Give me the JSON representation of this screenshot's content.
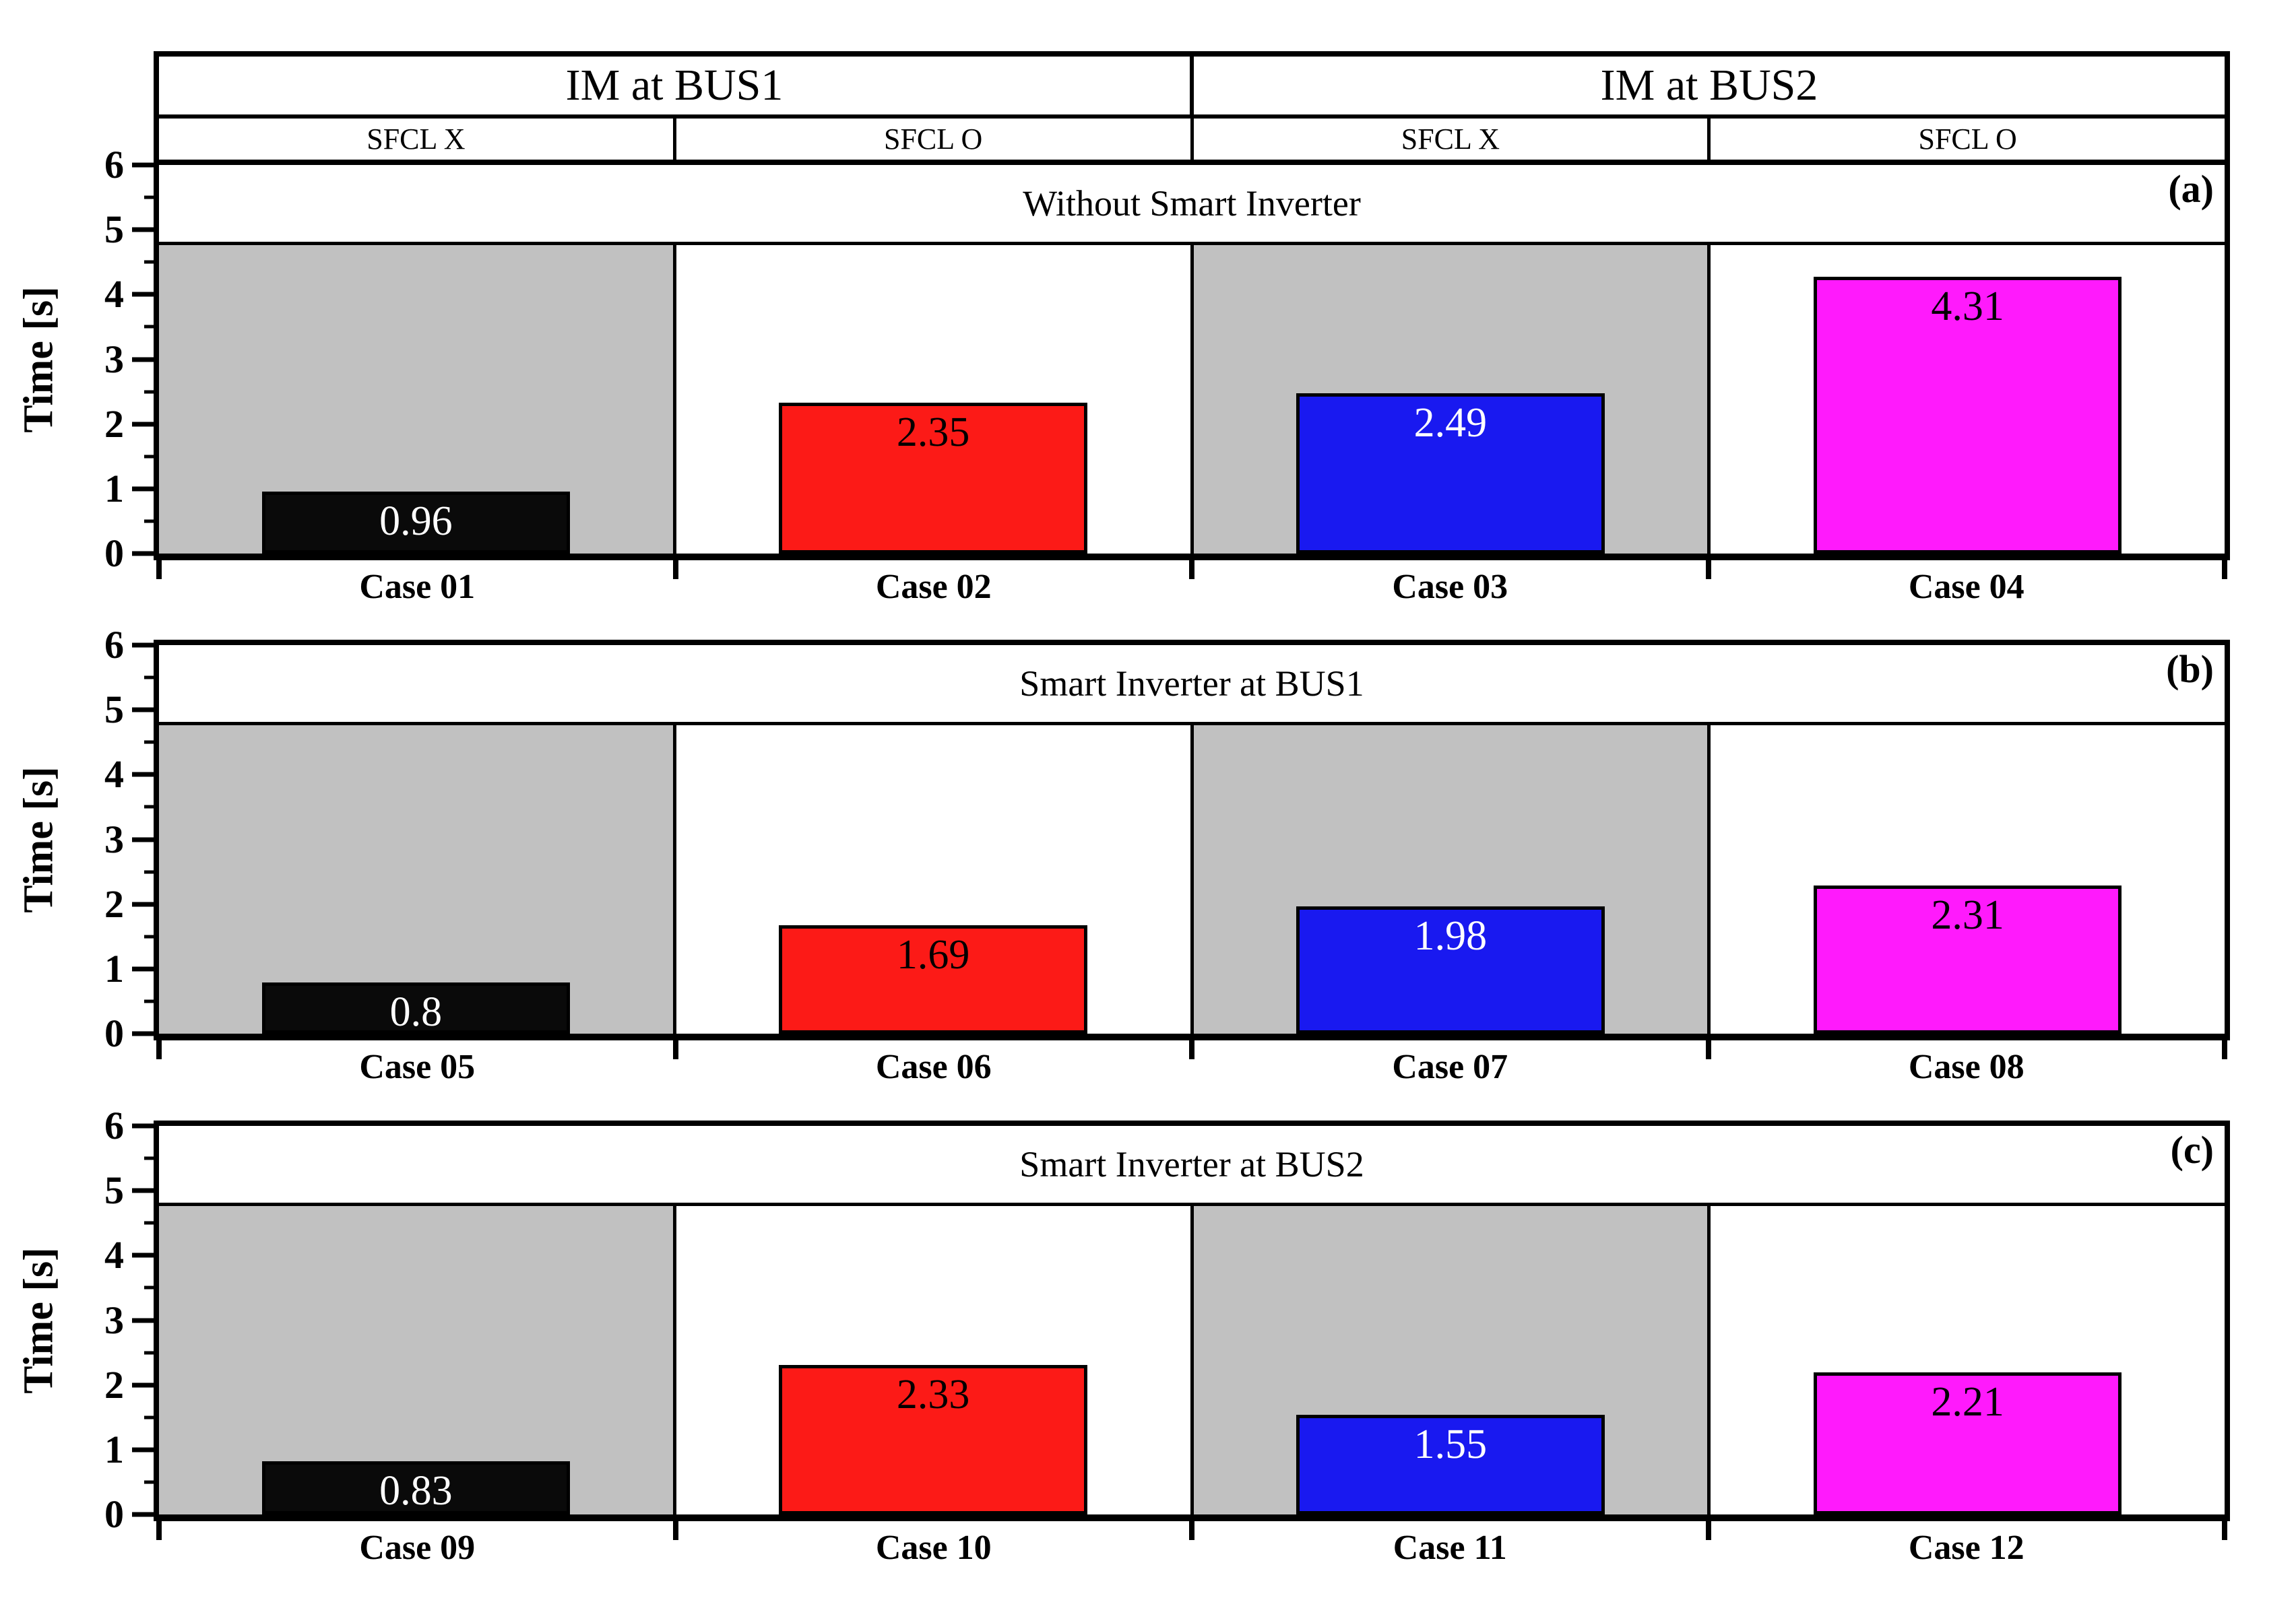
{
  "header": {
    "groups": [
      {
        "label": "IM at BUS1",
        "subcolumns": [
          "SFCL X",
          "SFCL O"
        ]
      },
      {
        "label": "IM at BUS2",
        "subcolumns": [
          "SFCL X",
          "SFCL O"
        ]
      }
    ]
  },
  "y_axis": {
    "label": "Time [s]",
    "min": 0,
    "max": 6,
    "major_ticks": [
      0,
      1,
      2,
      3,
      4,
      5,
      6
    ],
    "minor_tick_step": 0.5,
    "shaded_band_top": 4.8
  },
  "colors": {
    "shaded_column": "#C1C1C1",
    "frame": "#000000",
    "black_bar": "#0A0A0A",
    "red_bar": "#FC1A17",
    "blue_bar": "#1919F0",
    "magenta_bar": "#FF1AFC"
  },
  "chart_data": [
    {
      "type": "bar",
      "panel_tag": "(a)",
      "title": "Without Smart Inverter",
      "categories": [
        "Case 01",
        "Case 02",
        "Case 03",
        "Case 04"
      ],
      "values": [
        0.96,
        2.35,
        2.49,
        4.31
      ],
      "value_labels": [
        "0.96",
        "2.35",
        "2.49",
        "4.31"
      ],
      "bar_colors": [
        "#0A0A0A",
        "#FC1A17",
        "#1919F0",
        "#FF1AFC"
      ],
      "value_label_colors": [
        "#FFFFFF",
        "#000000",
        "#FFFFFF",
        "#000000"
      ],
      "shaded_columns": [
        true,
        false,
        true,
        false
      ],
      "ylabel": "Time [s]",
      "ylim": [
        0,
        6
      ],
      "shaded_band_top": 4.8,
      "grid": false,
      "legend": "none"
    },
    {
      "type": "bar",
      "panel_tag": "(b)",
      "title": "Smart Inverter at BUS1",
      "categories": [
        "Case 05",
        "Case 06",
        "Case 07",
        "Case 08"
      ],
      "values": [
        0.8,
        1.69,
        1.98,
        2.31
      ],
      "value_labels": [
        "0.8",
        "1.69",
        "1.98",
        "2.31"
      ],
      "bar_colors": [
        "#0A0A0A",
        "#FC1A17",
        "#1919F0",
        "#FF1AFC"
      ],
      "value_label_colors": [
        "#FFFFFF",
        "#000000",
        "#FFFFFF",
        "#000000"
      ],
      "shaded_columns": [
        true,
        false,
        true,
        false
      ],
      "ylabel": "Time [s]",
      "ylim": [
        0,
        6
      ],
      "shaded_band_top": 4.8,
      "grid": false,
      "legend": "none"
    },
    {
      "type": "bar",
      "panel_tag": "(c)",
      "title": "Smart Inverter at BUS2",
      "categories": [
        "Case 09",
        "Case 10",
        "Case 11",
        "Case 12"
      ],
      "values": [
        0.83,
        2.33,
        1.55,
        2.21
      ],
      "value_labels": [
        "0.83",
        "2.33",
        "1.55",
        "2.21"
      ],
      "bar_colors": [
        "#0A0A0A",
        "#FC1A17",
        "#1919F0",
        "#FF1AFC"
      ],
      "value_label_colors": [
        "#FFFFFF",
        "#000000",
        "#FFFFFF",
        "#000000"
      ],
      "shaded_columns": [
        true,
        false,
        true,
        false
      ],
      "ylabel": "Time [s]",
      "ylim": [
        0,
        6
      ],
      "shaded_band_top": 4.8,
      "grid": false,
      "legend": "none"
    }
  ]
}
